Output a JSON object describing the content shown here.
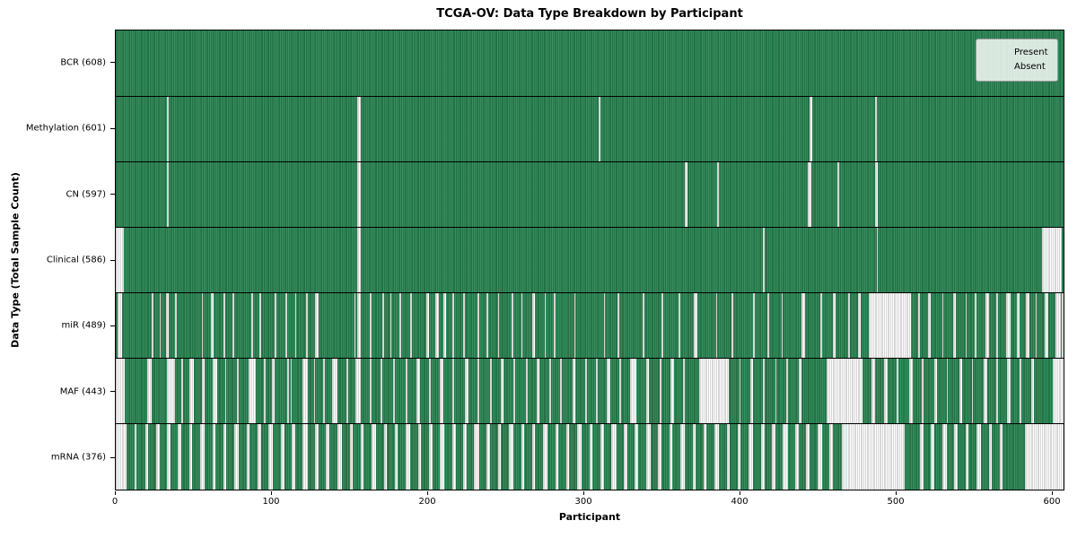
{
  "title": "TCGA-OV: Data Type Breakdown by Participant",
  "colors": {
    "present": "#2e8b57",
    "absent": "#ffffff",
    "bar_edge_dark": "#0a2c1b",
    "axis": "#000000",
    "legend_border": "#9a9a9a"
  },
  "legend": {
    "items": [
      {
        "label": "Present",
        "color": "#2e8b57"
      },
      {
        "label": "Absent",
        "color": "#ffffff"
      }
    ]
  },
  "chart_data": {
    "type": "heatmap",
    "title": "TCGA-OV: Data Type Breakdown by Participant",
    "xlabel": "Participant",
    "ylabel": "Data Type (Total Sample Count)",
    "x_range": [
      0,
      608
    ],
    "x_ticks": [
      0,
      100,
      200,
      300,
      400,
      500,
      600
    ],
    "grid": false,
    "legend": [
      "Present",
      "Absent"
    ],
    "legend_position": "upper right",
    "value_encoding": {
      "present": "green cell",
      "absent": "white cell"
    },
    "rows": [
      {
        "label": "BCR (608)",
        "name": "BCR",
        "present_count": 608,
        "absent_runs": []
      },
      {
        "label": "Methylation (601)",
        "name": "Methylation",
        "present_count": 601,
        "absent_runs": [
          [
            33,
            33
          ],
          [
            155,
            156
          ],
          [
            310,
            310
          ],
          [
            445,
            446
          ],
          [
            487,
            487
          ]
        ]
      },
      {
        "label": "CN (597)",
        "name": "CN",
        "present_count": 597,
        "absent_runs": [
          [
            33,
            33
          ],
          [
            155,
            156
          ],
          [
            365,
            366
          ],
          [
            386,
            386
          ],
          [
            444,
            445
          ],
          [
            463,
            463
          ],
          [
            487,
            488
          ]
        ]
      },
      {
        "label": "Clinical (586)",
        "name": "Clinical",
        "present_count": 586,
        "absent_runs": [
          [
            0,
            4
          ],
          [
            155,
            156
          ],
          [
            415,
            415
          ],
          [
            488,
            488
          ],
          [
            594,
            606
          ]
        ]
      },
      {
        "label": "miR (489)",
        "name": "miR",
        "present_count": 489,
        "absent_runs": [
          [
            1,
            3
          ],
          [
            23,
            23
          ],
          [
            28,
            28
          ],
          [
            32,
            33
          ],
          [
            38,
            38
          ],
          [
            55,
            55
          ],
          [
            61,
            62
          ],
          [
            69,
            69
          ],
          [
            75,
            75
          ],
          [
            87,
            87
          ],
          [
            92,
            92
          ],
          [
            102,
            102
          ],
          [
            109,
            109
          ],
          [
            115,
            115
          ],
          [
            122,
            122
          ],
          [
            128,
            129
          ],
          [
            153,
            153
          ],
          [
            155,
            156
          ],
          [
            163,
            163
          ],
          [
            171,
            171
          ],
          [
            176,
            176
          ],
          [
            182,
            182
          ],
          [
            189,
            189
          ],
          [
            199,
            200
          ],
          [
            205,
            206
          ],
          [
            210,
            211
          ],
          [
            216,
            216
          ],
          [
            223,
            223
          ],
          [
            232,
            232
          ],
          [
            238,
            238
          ],
          [
            245,
            245
          ],
          [
            254,
            254
          ],
          [
            260,
            260
          ],
          [
            267,
            268
          ],
          [
            275,
            275
          ],
          [
            281,
            281
          ],
          [
            294,
            294
          ],
          [
            313,
            313
          ],
          [
            322,
            322
          ],
          [
            338,
            338
          ],
          [
            350,
            350
          ],
          [
            361,
            361
          ],
          [
            371,
            372
          ],
          [
            385,
            385
          ],
          [
            395,
            395
          ],
          [
            409,
            409
          ],
          [
            418,
            418
          ],
          [
            427,
            427
          ],
          [
            440,
            441
          ],
          [
            452,
            452
          ],
          [
            460,
            461
          ],
          [
            470,
            470
          ],
          [
            476,
            477
          ],
          [
            483,
            509
          ],
          [
            515,
            515
          ],
          [
            521,
            522
          ],
          [
            530,
            530
          ],
          [
            537,
            538
          ],
          [
            545,
            545
          ],
          [
            551,
            551
          ],
          [
            558,
            559
          ],
          [
            565,
            565
          ],
          [
            571,
            573
          ],
          [
            578,
            579
          ],
          [
            584,
            585
          ],
          [
            590,
            590
          ],
          [
            596,
            597
          ],
          [
            603,
            605
          ],
          [
            607,
            607
          ]
        ]
      },
      {
        "label": "MAF (443)",
        "name": "MAF",
        "present_count": 443,
        "absent_runs": [
          [
            0,
            5
          ],
          [
            20,
            22
          ],
          [
            33,
            37
          ],
          [
            42,
            42
          ],
          [
            47,
            49
          ],
          [
            55,
            56
          ],
          [
            62,
            64
          ],
          [
            70,
            70
          ],
          [
            78,
            78
          ],
          [
            85,
            89
          ],
          [
            95,
            95
          ],
          [
            100,
            101
          ],
          [
            110,
            110
          ],
          [
            112,
            112
          ],
          [
            120,
            122
          ],
          [
            127,
            127
          ],
          [
            133,
            133
          ],
          [
            139,
            141
          ],
          [
            148,
            148
          ],
          [
            154,
            156
          ],
          [
            163,
            163
          ],
          [
            170,
            170
          ],
          [
            178,
            178
          ],
          [
            186,
            186
          ],
          [
            193,
            194
          ],
          [
            201,
            201
          ],
          [
            208,
            209
          ],
          [
            216,
            216
          ],
          [
            224,
            225
          ],
          [
            232,
            232
          ],
          [
            240,
            240
          ],
          [
            247,
            248
          ],
          [
            255,
            255
          ],
          [
            263,
            263
          ],
          [
            270,
            271
          ],
          [
            278,
            278
          ],
          [
            285,
            285
          ],
          [
            293,
            294
          ],
          [
            301,
            301
          ],
          [
            308,
            308
          ],
          [
            315,
            316
          ],
          [
            323,
            323
          ],
          [
            330,
            333
          ],
          [
            340,
            341
          ],
          [
            349,
            349
          ],
          [
            356,
            357
          ],
          [
            364,
            364
          ],
          [
            374,
            392
          ],
          [
            400,
            400
          ],
          [
            407,
            408
          ],
          [
            415,
            415
          ],
          [
            423,
            423
          ],
          [
            430,
            430
          ],
          [
            438,
            439
          ],
          [
            456,
            478
          ],
          [
            485,
            486
          ],
          [
            493,
            494
          ],
          [
            501,
            501
          ],
          [
            509,
            510
          ],
          [
            517,
            517
          ],
          [
            525,
            526
          ],
          [
            533,
            533
          ],
          [
            541,
            542
          ],
          [
            549,
            549
          ],
          [
            557,
            558
          ],
          [
            565,
            565
          ],
          [
            572,
            573
          ],
          [
            580,
            580
          ],
          [
            587,
            588
          ],
          [
            601,
            607
          ]
        ]
      },
      {
        "label": "mRNA (376)",
        "name": "mRNA",
        "present_count": 376,
        "absent_runs": [
          [
            0,
            6
          ],
          [
            12,
            12
          ],
          [
            19,
            20
          ],
          [
            26,
            27
          ],
          [
            33,
            34
          ],
          [
            40,
            41
          ],
          [
            47,
            48
          ],
          [
            54,
            56
          ],
          [
            62,
            63
          ],
          [
            69,
            70
          ],
          [
            76,
            78
          ],
          [
            84,
            85
          ],
          [
            91,
            92
          ],
          [
            98,
            100
          ],
          [
            106,
            107
          ],
          [
            113,
            114
          ],
          [
            120,
            122
          ],
          [
            128,
            129
          ],
          [
            135,
            136
          ],
          [
            142,
            144
          ],
          [
            150,
            151
          ],
          [
            157,
            158
          ],
          [
            164,
            166
          ],
          [
            172,
            173
          ],
          [
            179,
            180
          ],
          [
            186,
            188
          ],
          [
            194,
            195
          ],
          [
            201,
            202
          ],
          [
            208,
            210
          ],
          [
            216,
            217
          ],
          [
            223,
            224
          ],
          [
            230,
            232
          ],
          [
            238,
            239
          ],
          [
            245,
            246
          ],
          [
            252,
            254
          ],
          [
            260,
            261
          ],
          [
            267,
            268
          ],
          [
            274,
            276
          ],
          [
            282,
            283
          ],
          [
            289,
            290
          ],
          [
            296,
            298
          ],
          [
            304,
            305
          ],
          [
            311,
            312
          ],
          [
            318,
            320
          ],
          [
            326,
            327
          ],
          [
            333,
            334
          ],
          [
            340,
            342
          ],
          [
            348,
            349
          ],
          [
            355,
            356
          ],
          [
            362,
            364
          ],
          [
            370,
            371
          ],
          [
            377,
            378
          ],
          [
            384,
            386
          ],
          [
            392,
            393
          ],
          [
            399,
            400
          ],
          [
            406,
            408
          ],
          [
            414,
            415
          ],
          [
            421,
            422
          ],
          [
            428,
            430
          ],
          [
            436,
            437
          ],
          [
            443,
            444
          ],
          [
            450,
            452
          ],
          [
            458,
            459
          ],
          [
            466,
            505
          ],
          [
            516,
            517
          ],
          [
            523,
            524
          ],
          [
            530,
            532
          ],
          [
            538,
            539
          ],
          [
            545,
            546
          ],
          [
            552,
            554
          ],
          [
            560,
            561
          ],
          [
            567,
            568
          ],
          [
            583,
            607
          ]
        ]
      }
    ]
  }
}
